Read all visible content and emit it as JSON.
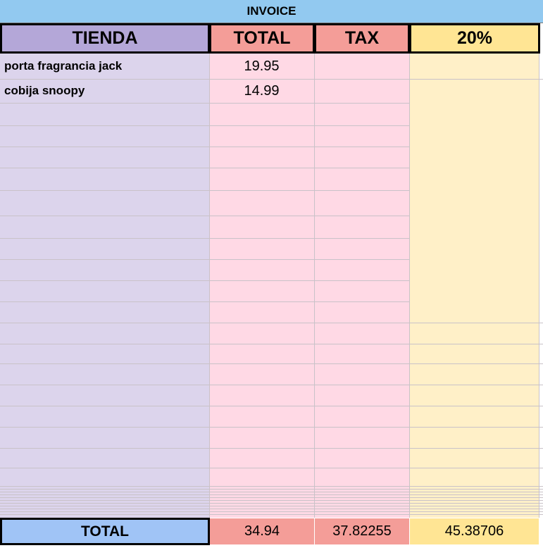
{
  "sheet": {
    "title": "INVOICE",
    "headers": [
      "TIENDA",
      "TOTAL",
      "TAX",
      "20%"
    ],
    "rows": [
      [
        "porta fragrancia jack",
        19.95
      ],
      [
        "cobija snoopy",
        14.99
      ]
    ],
    "totals": {
      "label": "TOTAL",
      "values": [
        34.94,
        37.82255,
        45.38706
      ]
    }
  }
}
